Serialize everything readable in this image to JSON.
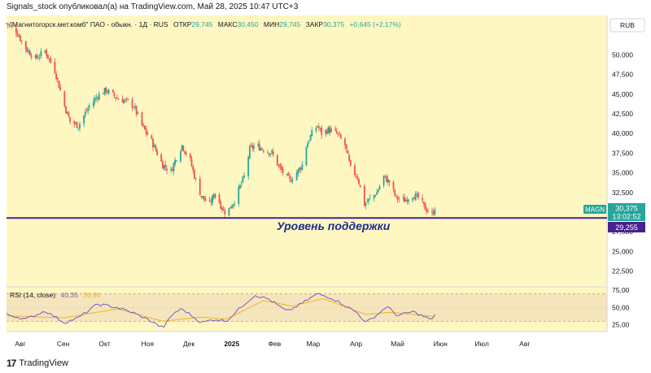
{
  "header": {
    "publisher": "Signals_stock опубликовал(а) на TradingView.com, Май 28, 2025 10:47 UTC+3"
  },
  "legend": {
    "symbol": "\"Магнитогорск.мет.комб\" ПАО - обыкн. · 1Д · RUS",
    "open_label": "ОТКР",
    "open": "29,745",
    "high_label": "МАКС",
    "high": "30,450",
    "low_label": "МИН",
    "low": "29,745",
    "close_label": "ЗАКР",
    "close": "30,375",
    "change": "+0,645 (+2,17%)"
  },
  "currency": "RUB",
  "price_badges": {
    "symbol": "MAGN",
    "price": "30,375",
    "countdown": "13:02:52",
    "support_price": "29,255"
  },
  "annotation": "Уровень поддержки",
  "rsi_legend": {
    "label": "RSI (14, close)",
    "value": "40,35",
    "ma_value": "36,98"
  },
  "footer": {
    "brand": "TradingView"
  },
  "colors": {
    "background": "#ffffff",
    "pane": "#fff7c2",
    "rsi_band": "#f5e5bc",
    "up": "#26a69a",
    "down": "#ef5350",
    "support": "#4a1f8f",
    "rsi_line": "#7e57c2",
    "rsi_ma": "#f0b429"
  },
  "chart_data": [
    {
      "type": "candlestick",
      "x_start": "2024-07-22",
      "x_end": "2025-05-28",
      "support_level": 29.255,
      "ylim": [
        20.5,
        55
      ],
      "y_ticks": [
        "50,000",
        "47,500",
        "45,000",
        "42,500",
        "40,000",
        "37,500",
        "35,000",
        "32,500",
        "27,500",
        "25,000",
        "22,500"
      ],
      "x_ticks": [
        "Авг",
        "Сен",
        "Окт",
        "Ноя",
        "Дек",
        "2025",
        "Фев",
        "Мар",
        "Апр",
        "Май",
        "Июн",
        "Июл",
        "Авг"
      ],
      "close_keypoints": [
        {
          "d": "2024-07-22",
          "v": 54.0
        },
        {
          "d": "2024-07-29",
          "v": 53.0
        },
        {
          "d": "2024-08-05",
          "v": 50.8
        },
        {
          "d": "2024-08-12",
          "v": 49.5
        },
        {
          "d": "2024-08-19",
          "v": 50.5
        },
        {
          "d": "2024-08-26",
          "v": 48.0
        },
        {
          "d": "2024-09-02",
          "v": 43.5
        },
        {
          "d": "2024-09-06",
          "v": 41.5
        },
        {
          "d": "2024-09-12",
          "v": 41.0
        },
        {
          "d": "2024-09-20",
          "v": 43.5
        },
        {
          "d": "2024-09-26",
          "v": 44.8
        },
        {
          "d": "2024-10-02",
          "v": 45.5
        },
        {
          "d": "2024-10-10",
          "v": 44.5
        },
        {
          "d": "2024-10-18",
          "v": 44.0
        },
        {
          "d": "2024-10-22",
          "v": 43.5
        },
        {
          "d": "2024-10-28",
          "v": 41.0
        },
        {
          "d": "2024-11-04",
          "v": 39.0
        },
        {
          "d": "2024-11-12",
          "v": 36.0
        },
        {
          "d": "2024-11-18",
          "v": 35.2
        },
        {
          "d": "2024-11-22",
          "v": 37.0
        },
        {
          "d": "2024-11-26",
          "v": 38.5
        },
        {
          "d": "2024-12-02",
          "v": 36.5
        },
        {
          "d": "2024-12-06",
          "v": 34.0
        },
        {
          "d": "2024-12-10",
          "v": 32.0
        },
        {
          "d": "2024-12-16",
          "v": 31.0
        },
        {
          "d": "2024-12-20",
          "v": 32.5
        },
        {
          "d": "2024-12-25",
          "v": 30.5
        },
        {
          "d": "2024-12-28",
          "v": 29.8
        },
        {
          "d": "2025-01-03",
          "v": 31.5
        },
        {
          "d": "2025-01-06",
          "v": 32.8
        },
        {
          "d": "2025-01-10",
          "v": 34.5
        },
        {
          "d": "2025-01-14",
          "v": 38.0
        },
        {
          "d": "2025-01-18",
          "v": 38.5
        },
        {
          "d": "2025-01-24",
          "v": 38.0
        },
        {
          "d": "2025-01-30",
          "v": 37.5
        },
        {
          "d": "2025-02-05",
          "v": 35.5
        },
        {
          "d": "2025-02-12",
          "v": 34.0
        },
        {
          "d": "2025-02-17",
          "v": 35.0
        },
        {
          "d": "2025-02-21",
          "v": 36.0
        },
        {
          "d": "2025-02-24",
          "v": 38.5
        },
        {
          "d": "2025-02-28",
          "v": 40.0
        },
        {
          "d": "2025-03-04",
          "v": 41.0
        },
        {
          "d": "2025-03-07",
          "v": 40.0
        },
        {
          "d": "2025-03-12",
          "v": 40.5
        },
        {
          "d": "2025-03-18",
          "v": 40.0
        },
        {
          "d": "2025-03-24",
          "v": 38.5
        },
        {
          "d": "2025-03-28",
          "v": 35.5
        },
        {
          "d": "2025-04-02",
          "v": 34.5
        },
        {
          "d": "2025-04-07",
          "v": 31.0
        },
        {
          "d": "2025-04-10",
          "v": 31.5
        },
        {
          "d": "2025-04-16",
          "v": 32.5
        },
        {
          "d": "2025-04-21",
          "v": 34.5
        },
        {
          "d": "2025-04-25",
          "v": 33.8
        },
        {
          "d": "2025-04-30",
          "v": 31.8
        },
        {
          "d": "2025-05-06",
          "v": 31.5
        },
        {
          "d": "2025-05-12",
          "v": 32.2
        },
        {
          "d": "2025-05-16",
          "v": 31.8
        },
        {
          "d": "2025-05-21",
          "v": 30.5
        },
        {
          "d": "2025-05-26",
          "v": 29.7
        },
        {
          "d": "2025-05-28",
          "v": 30.375
        }
      ]
    },
    {
      "type": "line",
      "name": "RSI (14, close)",
      "ylim": [
        15,
        80
      ],
      "y_ticks": [
        "75,00",
        "50,00",
        "25,00"
      ],
      "bands": [
        30,
        70
      ],
      "rsi_keypoints": [
        {
          "d": "2024-07-22",
          "v": 40
        },
        {
          "d": "2024-08-05",
          "v": 33
        },
        {
          "d": "2024-08-19",
          "v": 45
        },
        {
          "d": "2024-09-02",
          "v": 28
        },
        {
          "d": "2024-09-12",
          "v": 35
        },
        {
          "d": "2024-09-26",
          "v": 55
        },
        {
          "d": "2024-10-10",
          "v": 50
        },
        {
          "d": "2024-10-22",
          "v": 42
        },
        {
          "d": "2024-11-04",
          "v": 30
        },
        {
          "d": "2024-11-12",
          "v": 20
        },
        {
          "d": "2024-11-20",
          "v": 42
        },
        {
          "d": "2024-11-26",
          "v": 48
        },
        {
          "d": "2024-12-10",
          "v": 28
        },
        {
          "d": "2024-12-20",
          "v": 33
        },
        {
          "d": "2024-12-28",
          "v": 30
        },
        {
          "d": "2025-01-10",
          "v": 55
        },
        {
          "d": "2025-01-18",
          "v": 68
        },
        {
          "d": "2025-01-28",
          "v": 62
        },
        {
          "d": "2025-02-10",
          "v": 44
        },
        {
          "d": "2025-02-20",
          "v": 55
        },
        {
          "d": "2025-03-04",
          "v": 70
        },
        {
          "d": "2025-03-14",
          "v": 64
        },
        {
          "d": "2025-03-24",
          "v": 53
        },
        {
          "d": "2025-04-02",
          "v": 42
        },
        {
          "d": "2025-04-08",
          "v": 28
        },
        {
          "d": "2025-04-18",
          "v": 42
        },
        {
          "d": "2025-04-23",
          "v": 52
        },
        {
          "d": "2025-05-01",
          "v": 38
        },
        {
          "d": "2025-05-12",
          "v": 44
        },
        {
          "d": "2025-05-21",
          "v": 36
        },
        {
          "d": "2025-05-26",
          "v": 32
        },
        {
          "d": "2025-05-28",
          "v": 40.35
        }
      ],
      "ma_keypoints": [
        {
          "d": "2024-07-22",
          "v": 38
        },
        {
          "d": "2024-09-02",
          "v": 35
        },
        {
          "d": "2024-10-10",
          "v": 48
        },
        {
          "d": "2024-11-12",
          "v": 30
        },
        {
          "d": "2024-12-10",
          "v": 36
        },
        {
          "d": "2024-12-28",
          "v": 33
        },
        {
          "d": "2025-01-24",
          "v": 60
        },
        {
          "d": "2025-02-14",
          "v": 52
        },
        {
          "d": "2025-03-08",
          "v": 63
        },
        {
          "d": "2025-04-08",
          "v": 40
        },
        {
          "d": "2025-04-25",
          "v": 43
        },
        {
          "d": "2025-05-28",
          "v": 36.98
        }
      ]
    }
  ]
}
